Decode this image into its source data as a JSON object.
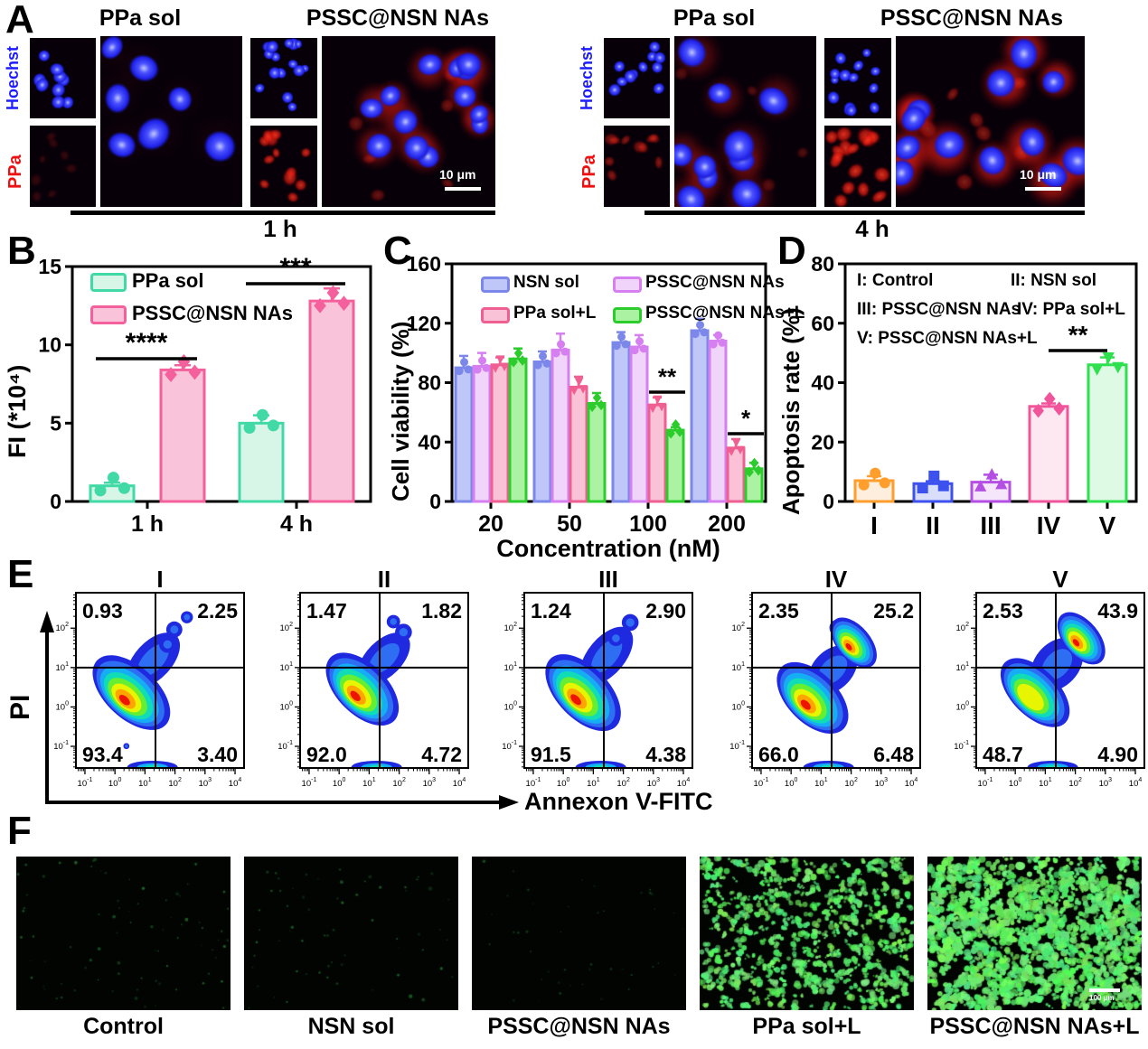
{
  "panels": {
    "A": {
      "label": "A",
      "row_labels": [
        "Hoechst",
        "PPa"
      ],
      "groups": [
        {
          "time": "1 h",
          "columns": [
            "PPa sol",
            "PSSC@NSN NAs"
          ],
          "scale_bar": "10 μm"
        },
        {
          "time": "4 h",
          "columns": [
            "PPa sol",
            "PSSC@NSN NAs"
          ],
          "scale_bar": "10 μm"
        }
      ]
    },
    "E": {
      "label": "E",
      "ylabel": "PI",
      "xlabel": "Annexon V-FITC"
    },
    "F": {
      "label": "F",
      "images": [
        {
          "label": "Control",
          "appearance": "sparse dim green dots on black"
        },
        {
          "label": "NSN sol",
          "appearance": "sparse dim green dots on black"
        },
        {
          "label": "PSSC@NSN NAs",
          "appearance": "very sparse dim green dots on black"
        },
        {
          "label": "PPa sol+L",
          "appearance": "dense bright green cells"
        },
        {
          "label": "PSSC@NSN NAs+L",
          "appearance": "very dense bright green cells"
        }
      ],
      "scale_bar": "100 μm"
    }
  },
  "chart_data": [
    {
      "panel": "B",
      "type": "bar",
      "ylabel": "FI (*10⁴)",
      "ylim": [
        0,
        15
      ],
      "yticks": [
        0,
        5,
        10,
        15
      ],
      "categories": [
        "1 h",
        "4 h"
      ],
      "series": [
        {
          "name": "PPa sol",
          "values": [
            1.0,
            5.0
          ],
          "errors": [
            0.2,
            0.5
          ],
          "fill": "#d8f6e8",
          "stroke": "#41d9a5",
          "marker": "circle"
        },
        {
          "name": "PSSC@NSN NAs",
          "values": [
            8.4,
            12.8
          ],
          "errors": [
            0.3,
            0.8
          ],
          "fill": "#f9c4da",
          "stroke": "#f4609b",
          "marker": "diamond"
        }
      ],
      "significance": [
        {
          "category": "1 h",
          "label": "****"
        },
        {
          "category": "4 h",
          "label": "***"
        }
      ],
      "grid": false,
      "legend_position": "top-left"
    },
    {
      "panel": "C",
      "type": "bar",
      "ylabel": "Cell viability (%)",
      "xlabel": "Concentration (nM)",
      "ylim": [
        0,
        160
      ],
      "yticks": [
        0,
        40,
        80,
        120,
        160
      ],
      "categories": [
        "20",
        "50",
        "100",
        "200"
      ],
      "series": [
        {
          "name": "NSN sol",
          "values": [
            90,
            94,
            107,
            115
          ],
          "errors": [
            8,
            7,
            7,
            8
          ],
          "fill": "#bfc7f8",
          "stroke": "#7b87e9",
          "marker": "circle"
        },
        {
          "name": "PSSC@NSN NAs",
          "values": [
            91,
            102,
            104,
            108
          ],
          "errors": [
            9,
            11,
            8,
            4
          ],
          "fill": "#f0d4fa",
          "stroke": "#d57ff0",
          "marker": "circle"
        },
        {
          "name": "PPa sol+L",
          "values": [
            92,
            77,
            65,
            36
          ],
          "errors": [
            5,
            7,
            5,
            6
          ],
          "fill": "#fac2d6",
          "stroke": "#ef5f92",
          "marker": "triangle-down"
        },
        {
          "name": "PSSC@NSN NAs+L",
          "values": [
            96,
            66,
            48,
            22
          ],
          "errors": [
            7,
            7,
            2,
            4
          ],
          "fill": "#abf3a3",
          "stroke": "#2ccc2c",
          "marker": "diamond"
        }
      ],
      "significance": [
        {
          "category": "100",
          "label": "**"
        },
        {
          "category": "200",
          "label": "*"
        }
      ],
      "grid": false,
      "legend_position": "top 2x2"
    },
    {
      "panel": "D",
      "type": "bar",
      "ylabel": "Apoptosis rate (%)",
      "ylim": [
        0,
        80
      ],
      "yticks": [
        0,
        20,
        40,
        60,
        80
      ],
      "categories": [
        "I",
        "II",
        "III",
        "IV",
        "V"
      ],
      "values": [
        7,
        6,
        6.5,
        32,
        46
      ],
      "errors": [
        1.5,
        0.8,
        2.5,
        1,
        2.5
      ],
      "bar_styles": [
        {
          "fill": "#fdeedd",
          "stroke": "#ff9e2c",
          "marker": "circle"
        },
        {
          "fill": "#d9dffb",
          "stroke": "#3d51ee",
          "marker": "square"
        },
        {
          "fill": "#f6e6fb",
          "stroke": "#b44fe3",
          "marker": "triangle"
        },
        {
          "fill": "#fde7f1",
          "stroke": "#f0559c",
          "marker": "diamond"
        },
        {
          "fill": "#defae4",
          "stroke": "#2ee04e",
          "marker": "triangle-down"
        }
      ],
      "legend": [
        "I: Control",
        "II: NSN sol",
        "III: PSSC@NSN NAs",
        "IV: PPa sol+L",
        "V: PSSC@NSN NAs+L"
      ],
      "significance": [
        {
          "between": [
            "IV",
            "V"
          ],
          "label": "**"
        }
      ],
      "grid": false
    },
    {
      "panel": "E",
      "type": "flow-density",
      "xlabel": "Annexon V-FITC",
      "ylabel": "PI",
      "x_ticks_exp": [
        -1,
        0,
        1,
        2,
        3,
        4
      ],
      "y_ticks_exp": [
        2,
        1,
        0,
        -1
      ],
      "plots": [
        {
          "title": "I",
          "quadrants": {
            "upper_left": "0.93",
            "upper_right": "2.25",
            "lower_left": "93.4",
            "lower_right": "3.40"
          }
        },
        {
          "title": "II",
          "quadrants": {
            "upper_left": "1.47",
            "upper_right": "1.82",
            "lower_left": "92.0",
            "lower_right": "4.72"
          }
        },
        {
          "title": "III",
          "quadrants": {
            "upper_left": "1.24",
            "upper_right": "2.90",
            "lower_left": "91.5",
            "lower_right": "4.38"
          }
        },
        {
          "title": "IV",
          "quadrants": {
            "upper_left": "2.35",
            "upper_right": "25.2",
            "lower_left": "66.0",
            "lower_right": "6.48"
          }
        },
        {
          "title": "V",
          "quadrants": {
            "upper_left": "2.53",
            "upper_right": "43.9",
            "lower_left": "48.7",
            "lower_right": "4.90"
          }
        }
      ]
    }
  ]
}
